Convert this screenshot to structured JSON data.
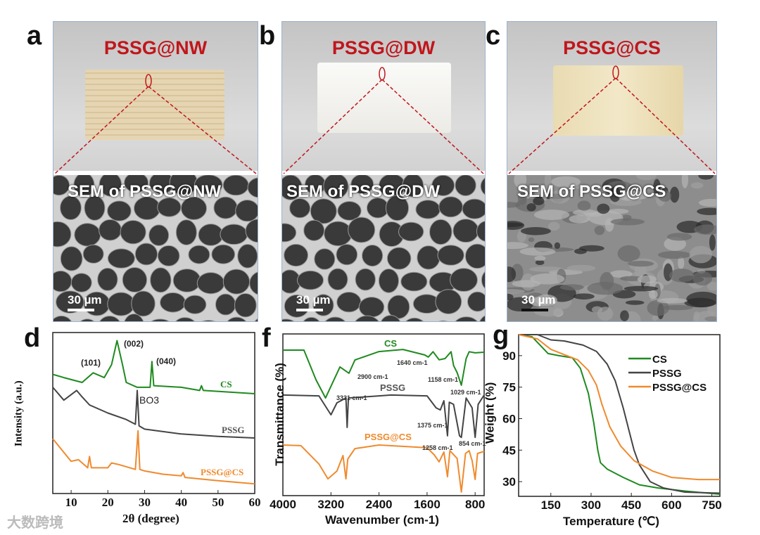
{
  "panels": {
    "a": {
      "letter": "a",
      "title": "PSSG@NW",
      "sem_title": "SEM of PSSG@NW",
      "scale": "30 µm",
      "block_color": "#e3d2ad"
    },
    "b": {
      "letter": "b",
      "title": "PSSG@DW",
      "sem_title": "SEM of PSSG@DW",
      "scale": "30 µm",
      "block_color": "#f1f0ec"
    },
    "c": {
      "letter": "c",
      "title": "PSSG@CS",
      "sem_title": "SEM of PSSG@CS",
      "scale": "30 µm",
      "block_color": "#ece0bd"
    },
    "d": {
      "letter": "d"
    },
    "f": {
      "letter": "f"
    },
    "g": {
      "letter": "g"
    }
  },
  "colors": {
    "CS": "#1f8a1f",
    "PSSG": "#444444",
    "PSSG@CS": "#ef8a2e",
    "title_red": "#c0161c"
  },
  "watermark": "大数跨境",
  "chart_data": [
    {
      "id": "d",
      "type": "line",
      "title": "",
      "xlabel": "2θ (degree)",
      "ylabel": "Intensity (a.u.)",
      "xlim": [
        5,
        60
      ],
      "ylim": [
        0,
        100
      ],
      "xticks": [
        10,
        20,
        30,
        40,
        50,
        60
      ],
      "yticks": [],
      "annotations": [
        "(101)",
        "(002)",
        "(040)",
        "BO3"
      ],
      "series_labels": [
        "CS",
        "PSSG",
        "PSSG@CS"
      ],
      "series": [
        {
          "name": "CS",
          "x": [
            5,
            8,
            13,
            16,
            19,
            21,
            22.5,
            24,
            25,
            28,
            31.5,
            32,
            32.5,
            40,
            45,
            45.5,
            46,
            60
          ],
          "y": [
            74,
            72,
            69,
            75,
            72,
            80,
            95,
            80,
            69,
            66,
            66,
            82,
            67,
            66,
            64,
            67,
            64,
            62
          ]
        },
        {
          "name": "PSSG",
          "x": [
            5,
            8,
            11.5,
            13,
            15,
            20,
            25,
            27.5,
            28,
            28.5,
            30,
            40,
            50,
            60
          ],
          "y": [
            66,
            58,
            64,
            60,
            55,
            50,
            46,
            43,
            64,
            42,
            40,
            37,
            35.5,
            34.5
          ]
        },
        {
          "name": "PSSG@CS",
          "x": [
            5,
            10,
            12,
            14.5,
            15,
            15.5,
            20,
            21,
            23,
            27.5,
            28.2,
            28.7,
            30,
            35,
            40,
            40.5,
            41,
            50,
            60
          ],
          "y": [
            34,
            20,
            21,
            16,
            23,
            16,
            16,
            19,
            18,
            15,
            39,
            15,
            14,
            12,
            11,
            13,
            10,
            8,
            6
          ]
        }
      ]
    },
    {
      "id": "f",
      "type": "line",
      "title": "",
      "xlabel": "Wavenumber (cm-1)",
      "ylabel": "Transmittance (%)",
      "xlim": [
        4000,
        650
      ],
      "ylim": [
        0,
        100
      ],
      "xticks": [
        4000,
        3200,
        2400,
        1600,
        800
      ],
      "yticks": [],
      "annotations": [
        "2900 cm-1",
        "1640 cm-1",
        "1158 cm-1",
        "1029 cm-1",
        "3331 cm-1",
        "1375 cm-1",
        "1258 cm-1",
        "854 cm-1"
      ],
      "series_labels": [
        "CS",
        "PSSG",
        "PSSG@CS"
      ],
      "series": [
        {
          "name": "CS",
          "x": [
            4000,
            3650,
            3450,
            3290,
            3050,
            2950,
            2900,
            2800,
            2400,
            2000,
            1640,
            1580,
            1500,
            1400,
            1300,
            1200,
            1158,
            1100,
            1029,
            950,
            900,
            800,
            650
          ],
          "y": [
            90,
            90,
            71.7,
            60.4,
            79.6,
            77,
            75.7,
            83.9,
            89.1,
            90.4,
            87,
            85.7,
            89,
            84,
            84.8,
            89,
            80.4,
            76.1,
            68.3,
            84.8,
            89,
            88.3,
            88.7
          ]
        },
        {
          "name": "PSSG",
          "x": [
            4000,
            3400,
            3200,
            3100,
            2950,
            2930,
            2910,
            2400,
            2200,
            1600,
            1450,
            1380,
            1320,
            1260,
            1230,
            1160,
            1060,
            1029,
            950,
            850,
            800,
            750,
            650
          ],
          "y": [
            62.2,
            61.7,
            50,
            57.4,
            60.4,
            42.2,
            60.4,
            61.7,
            62.2,
            61.7,
            54.3,
            53,
            58.7,
            37,
            57.8,
            56.5,
            37,
            36,
            60.4,
            54.3,
            36,
            56.5,
            62.2
          ]
        },
        {
          "name": "PSSG@CS",
          "x": [
            4000,
            3700,
            3400,
            3250,
            3100,
            3000,
            2950,
            2920,
            2800,
            2400,
            1600,
            1480,
            1400,
            1320,
            1260,
            1220,
            1100,
            1029,
            960,
            900,
            850,
            800,
            760,
            650
          ],
          "y": [
            31.3,
            30.9,
            19.6,
            10.4,
            15.2,
            24.8,
            10.4,
            22.6,
            29.1,
            31.3,
            29.6,
            25.2,
            20.9,
            27,
            11.7,
            27.8,
            23,
            2.2,
            26.1,
            27.8,
            21.7,
            10,
            26.1,
            27.4
          ]
        }
      ]
    },
    {
      "id": "g",
      "type": "line",
      "title": "",
      "xlabel": "Temperature (℃)",
      "ylabel": "Weight (%)",
      "xlim": [
        30,
        780
      ],
      "ylim": [
        23,
        100
      ],
      "xticks": [
        150,
        300,
        450,
        600,
        750
      ],
      "yticks": [
        30,
        45,
        60,
        75,
        90
      ],
      "legend": "top-right",
      "series": [
        {
          "name": "CS",
          "x": [
            30,
            80,
            110,
            140,
            180,
            230,
            260,
            290,
            310,
            325,
            335,
            360,
            420,
            480,
            550,
            650,
            780
          ],
          "y": [
            100,
            99,
            95,
            91,
            90,
            89,
            84,
            72,
            58,
            45,
            39,
            36,
            32,
            28.5,
            27,
            25.5,
            24
          ]
        },
        {
          "name": "PSSG",
          "x": [
            30,
            100,
            150,
            200,
            270,
            320,
            360,
            390,
            420,
            440,
            460,
            480,
            520,
            570,
            650,
            780
          ],
          "y": [
            100,
            100,
            97.5,
            97,
            95,
            92,
            86,
            78,
            65,
            55,
            45,
            38,
            30,
            27,
            25,
            24.5
          ]
        },
        {
          "name": "PSSG@CS",
          "x": [
            30,
            100,
            150,
            200,
            250,
            290,
            320,
            340,
            370,
            410,
            460,
            530,
            600,
            700,
            780
          ],
          "y": [
            100,
            98,
            93,
            90.5,
            88,
            83,
            76,
            67,
            56,
            47,
            40,
            35,
            32,
            31,
            31
          ]
        }
      ]
    }
  ]
}
